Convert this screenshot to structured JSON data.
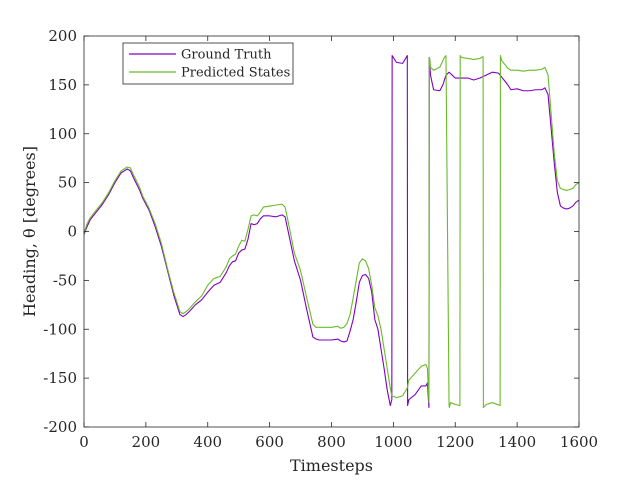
{
  "chart_data": {
    "type": "line",
    "title": "",
    "xlabel": "Timesteps",
    "ylabel": "Heading, θ [degrees]",
    "xlim": [
      0,
      1600
    ],
    "ylim": [
      -200,
      200
    ],
    "xticks": [
      0,
      200,
      400,
      600,
      800,
      1000,
      1200,
      1400,
      1600
    ],
    "yticks": [
      -200,
      -150,
      -100,
      -50,
      0,
      50,
      100,
      150,
      200
    ],
    "grid": false,
    "legend_position": "top-left",
    "series": [
      {
        "name": "Ground Truth",
        "color": "#8000c0",
        "x": [
          0,
          10,
          20,
          40,
          60,
          80,
          100,
          120,
          140,
          150,
          160,
          180,
          190,
          200,
          210,
          230,
          250,
          270,
          290,
          310,
          320,
          330,
          340,
          360,
          380,
          400,
          420,
          440,
          460,
          470,
          480,
          490,
          500,
          510,
          520,
          530,
          540,
          550,
          560,
          570,
          580,
          600,
          620,
          640,
          650,
          660,
          680,
          700,
          720,
          740,
          750,
          760,
          780,
          800,
          820,
          830,
          840,
          850,
          860,
          870,
          880,
          890,
          900,
          910,
          920,
          930,
          940,
          950,
          960,
          970,
          980,
          990,
          995,
          996,
          1010,
          1030,
          1045,
          1046,
          1050,
          1070,
          1090,
          1105,
          1110,
          1115,
          1116,
          1120,
          1130,
          1150,
          1160,
          1170,
          1180,
          1200,
          1220,
          1240,
          1260,
          1280,
          1300,
          1320,
          1340,
          1350,
          1370,
          1380,
          1400,
          1420,
          1440,
          1460,
          1480,
          1490,
          1500,
          1510,
          1520,
          1530,
          1540,
          1550,
          1560,
          1570,
          1580,
          1590,
          1600
        ],
        "y": [
          -3,
          5,
          12,
          20,
          28,
          38,
          50,
          60,
          64,
          62,
          55,
          42,
          34,
          28,
          22,
          5,
          -15,
          -40,
          -65,
          -85,
          -87,
          -85,
          -82,
          -75,
          -70,
          -62,
          -55,
          -52,
          -42,
          -35,
          -31,
          -30,
          -22,
          -19,
          -18,
          -8,
          8,
          7,
          8,
          13,
          16,
          16,
          15,
          17,
          15,
          0,
          -30,
          -50,
          -80,
          -108,
          -110,
          -111,
          -111,
          -111,
          -110,
          -112,
          -113,
          -112,
          -102,
          -90,
          -72,
          -52,
          -45,
          -44,
          -48,
          -62,
          -90,
          -100,
          -120,
          -140,
          -162,
          -178,
          -172,
          180,
          173,
          172,
          180,
          -178,
          -172,
          -167,
          -158,
          -158,
          -155,
          -180,
          178,
          160,
          145,
          144,
          150,
          160,
          163,
          157,
          157,
          157,
          155,
          157,
          160,
          163,
          162,
          158,
          150,
          145,
          146,
          144,
          144,
          145,
          145,
          147,
          140,
          105,
          70,
          40,
          26,
          24,
          23,
          24,
          26,
          30,
          32
        ]
      },
      {
        "name": "Predicted States",
        "color": "#6aba2a",
        "x": [
          0,
          10,
          20,
          40,
          60,
          80,
          100,
          120,
          140,
          150,
          160,
          180,
          190,
          200,
          210,
          230,
          250,
          270,
          290,
          310,
          320,
          330,
          340,
          360,
          380,
          400,
          420,
          440,
          460,
          470,
          480,
          490,
          500,
          510,
          520,
          530,
          540,
          550,
          560,
          570,
          580,
          600,
          620,
          640,
          650,
          660,
          680,
          700,
          720,
          740,
          750,
          760,
          780,
          800,
          820,
          830,
          840,
          850,
          860,
          870,
          880,
          890,
          900,
          910,
          920,
          930,
          940,
          950,
          960,
          970,
          980,
          990,
          995,
          1010,
          1030,
          1045,
          1050,
          1070,
          1090,
          1105,
          1110,
          1115,
          1116,
          1118,
          1120,
          1130,
          1150,
          1165,
          1170,
          1180,
          1181,
          1185,
          1200,
          1215,
          1216,
          1220,
          1240,
          1260,
          1280,
          1290,
          1291,
          1300,
          1320,
          1345,
          1346,
          1350,
          1370,
          1380,
          1400,
          1420,
          1440,
          1460,
          1480,
          1490,
          1500,
          1510,
          1520,
          1530,
          1540,
          1550,
          1560,
          1570,
          1580,
          1590,
          1600
        ],
        "y": [
          -2,
          8,
          14,
          22,
          30,
          40,
          52,
          62,
          66,
          65,
          58,
          45,
          36,
          30,
          24,
          8,
          -12,
          -38,
          -62,
          -82,
          -84,
          -82,
          -79,
          -72,
          -66,
          -55,
          -48,
          -46,
          -36,
          -28,
          -25,
          -23,
          -15,
          -9,
          -10,
          2,
          16,
          17,
          16,
          20,
          25,
          26,
          27,
          28,
          25,
          10,
          -22,
          -40,
          -68,
          -95,
          -98,
          -98,
          -98,
          -98,
          -97,
          -99,
          -98,
          -94,
          -85,
          -68,
          -50,
          -32,
          -28,
          -30,
          -38,
          -55,
          -78,
          -86,
          -100,
          -120,
          -140,
          -160,
          -168,
          -170,
          -168,
          -160,
          -152,
          -145,
          -138,
          -136,
          -140,
          -175,
          178,
          176,
          168,
          165,
          168,
          178,
          180,
          -178,
          -180,
          -175,
          -177,
          -178,
          180,
          178,
          177,
          176,
          177,
          179,
          -180,
          -177,
          -175,
          -178,
          180,
          175,
          167,
          165,
          165,
          164,
          165,
          165,
          166,
          168,
          160,
          120,
          80,
          52,
          44,
          43,
          42,
          43,
          44,
          48,
          50
        ]
      }
    ]
  }
}
